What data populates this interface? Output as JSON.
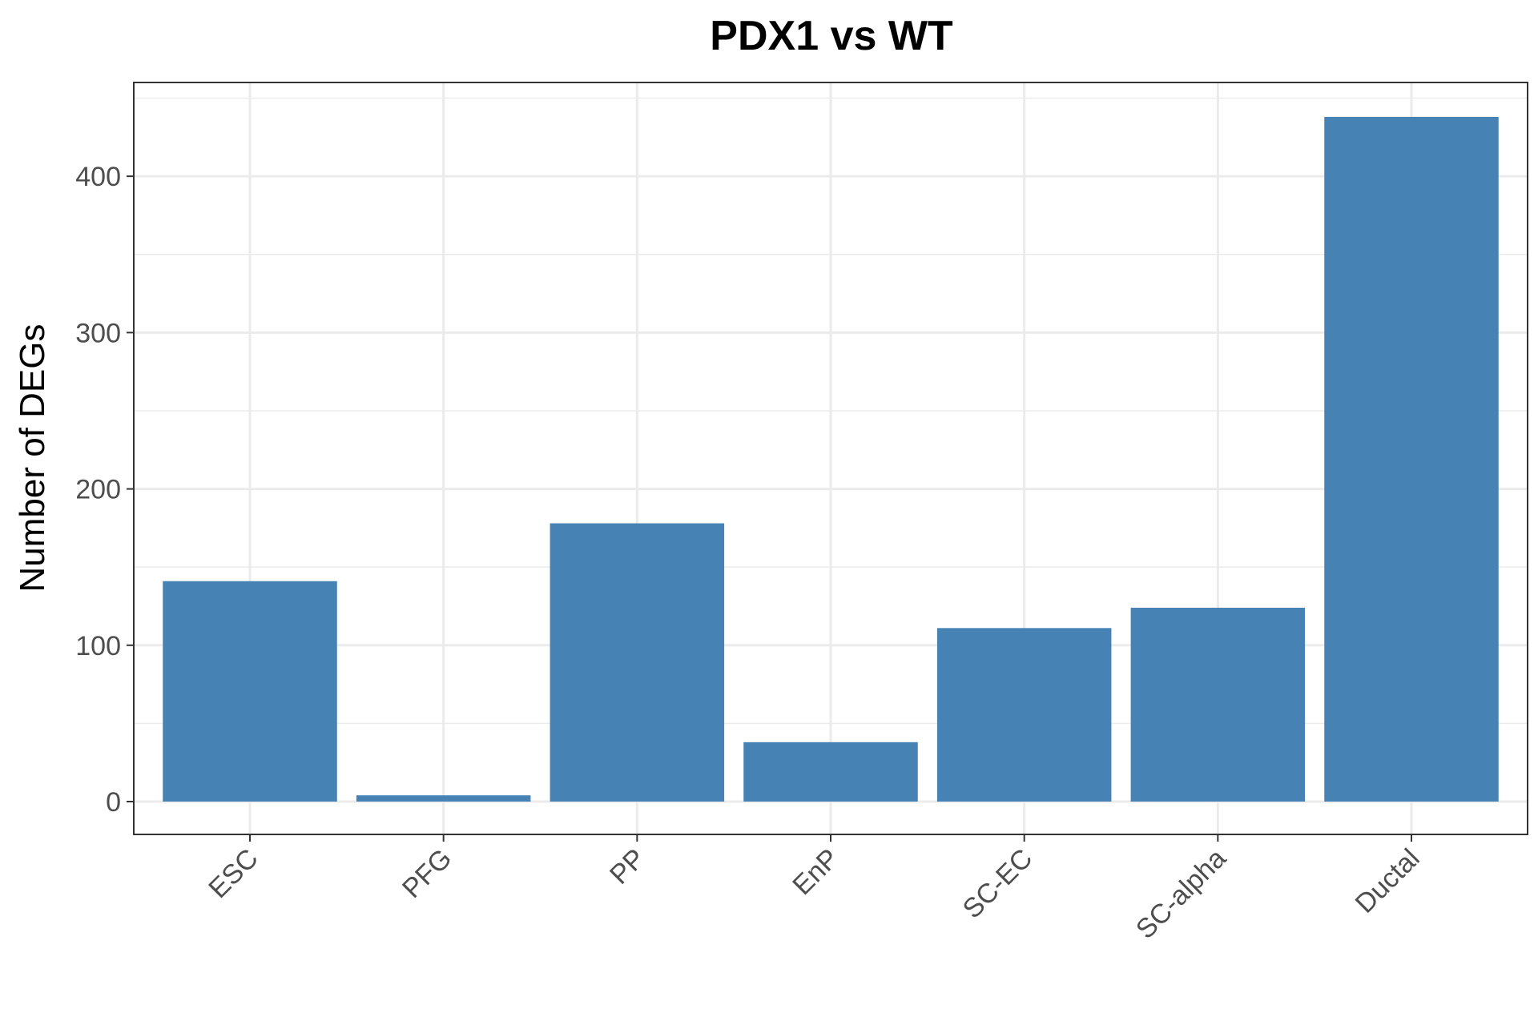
{
  "chart_data": {
    "type": "bar",
    "title": "PDX1 vs WT",
    "xlabel": "",
    "ylabel": "Number of DEGs",
    "categories": [
      "ESC",
      "PFG",
      "PP",
      "EnP",
      "SC-EC",
      "SC-alpha",
      "Ductal"
    ],
    "values": [
      141,
      4,
      178,
      38,
      111,
      124,
      438
    ],
    "ylim": [
      -21,
      460
    ],
    "yticks": [
      0,
      100,
      200,
      300,
      400
    ],
    "ytick_labels": [
      "0",
      "100",
      "200",
      "300",
      "400"
    ],
    "grid": true,
    "legend": "none",
    "bar_color": "#4682B4",
    "grid_color": "#EBEBEB",
    "panel_border_color": "#333333"
  }
}
